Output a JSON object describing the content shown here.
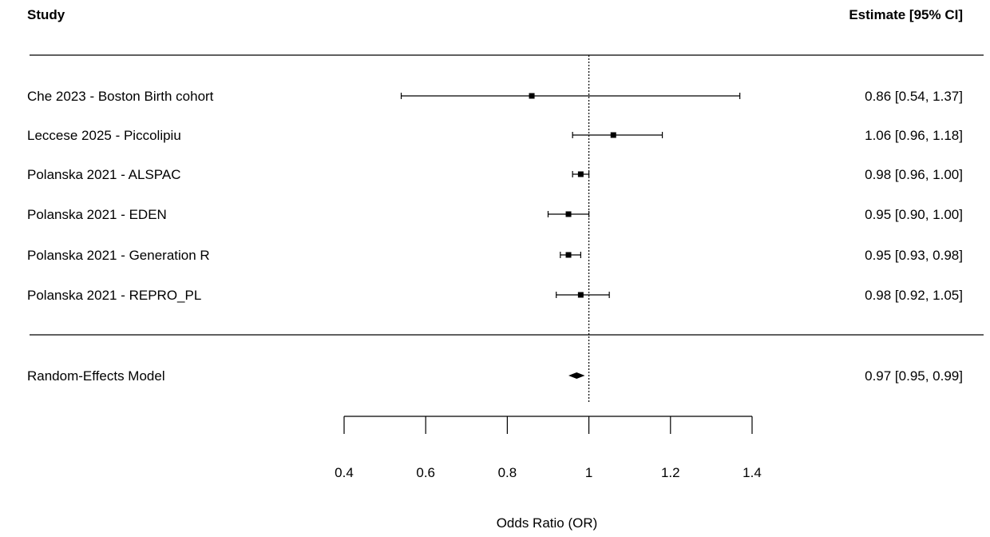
{
  "header": {
    "study_col": "Study",
    "estimate_col": "Estimate [95% CI]"
  },
  "chart_data": {
    "type": "forest",
    "xlabel": "Odds Ratio (OR)",
    "xlim": [
      0.4,
      1.4
    ],
    "xticks": [
      0.4,
      0.6,
      0.8,
      1,
      1.2,
      1.4
    ],
    "xtick_labels": [
      "0.4",
      "0.6",
      "0.8",
      "1",
      "1.2",
      "1.4"
    ],
    "reference_line": 1,
    "studies": [
      {
        "label": "Che 2023 - Boston Birth cohort",
        "estimate": 0.86,
        "lower": 0.54,
        "upper": 1.37,
        "text": "0.86 [0.54, 1.37]"
      },
      {
        "label": "Leccese 2025 - Piccolipiu",
        "estimate": 1.06,
        "lower": 0.96,
        "upper": 1.18,
        "text": "1.06 [0.96, 1.18]"
      },
      {
        "label": "Polanska 2021 - ALSPAC",
        "estimate": 0.98,
        "lower": 0.96,
        "upper": 1.0,
        "text": "0.98 [0.96, 1.00]"
      },
      {
        "label": "Polanska 2021 - EDEN",
        "estimate": 0.95,
        "lower": 0.9,
        "upper": 1.0,
        "text": "0.95 [0.90, 1.00]"
      },
      {
        "label": "Polanska 2021 - Generation R",
        "estimate": 0.95,
        "lower": 0.93,
        "upper": 0.98,
        "text": "0.95 [0.93, 0.98]"
      },
      {
        "label": "Polanska 2021 - REPRO_PL",
        "estimate": 0.98,
        "lower": 0.92,
        "upper": 1.05,
        "text": "0.98 [0.92, 1.05]"
      }
    ],
    "summary": {
      "label": "Random-Effects Model",
      "estimate": 0.97,
      "lower": 0.95,
      "upper": 0.99,
      "text": "0.97 [0.95, 0.99]"
    }
  }
}
